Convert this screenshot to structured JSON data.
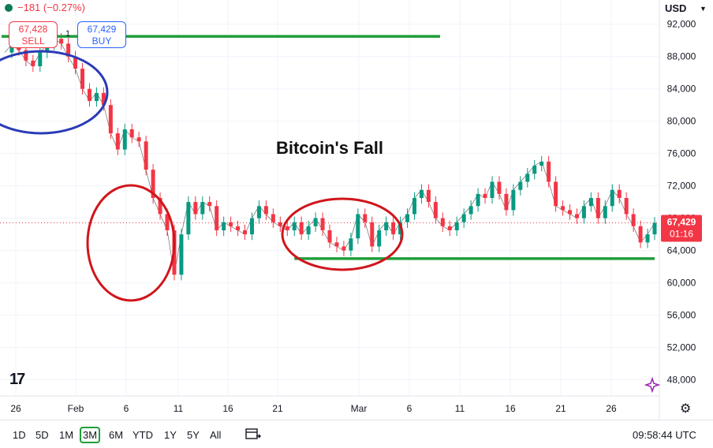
{
  "header": {
    "change_text": "−181 (−0.27%)",
    "sell_price": "67,428",
    "sell_label": "SELL",
    "spread": "1",
    "buy_price": "67,429",
    "buy_label": "BUY",
    "currency": "USD"
  },
  "toolbar": {
    "ranges": [
      "1D",
      "5D",
      "1M",
      "3M",
      "6M",
      "YTD",
      "1Y",
      "5Y",
      "All"
    ],
    "active_range": "3M",
    "clock": "09:58:44 UTC"
  },
  "colors": {
    "up": "#089981",
    "down": "#f23645",
    "support": "#1f9e3a",
    "circle_blue": "#2a3bb5",
    "circle_red": "#d0151b"
  },
  "chart_data": {
    "type": "line",
    "title": "Bitcoin's Fall",
    "y_tick_labels": [
      "92,000",
      "88,000",
      "84,000",
      "80,000",
      "76,000",
      "72,000",
      "68,000",
      "64,000",
      "60,000",
      "56,000",
      "52,000",
      "48,000"
    ],
    "x_tick_labels": [
      "26",
      "Feb",
      "6",
      "11",
      "16",
      "21",
      "Mar",
      "6",
      "11",
      "16",
      "21",
      "26"
    ],
    "ylim": [
      46000,
      95000
    ],
    "last_price": "67,429",
    "countdown": "01:16",
    "support_lines": [
      {
        "start": 12,
        "end": 57,
        "value": 90500
      },
      {
        "start": 41,
        "end": 78,
        "value": 63000
      }
    ],
    "series": [
      {
        "values": [
          88500,
          89500,
          88800,
          87500,
          86800,
          88500,
          89500,
          90200,
          89600,
          88000,
          86500,
          84000,
          82500,
          83500,
          82000,
          78500,
          76500,
          79000,
          78000,
          77500,
          74000,
          70500,
          68500,
          66500,
          61000,
          66000,
          70000,
          68500,
          70000,
          69500,
          66500,
          67500,
          67000,
          66500,
          66000,
          68000,
          69500,
          68500,
          67500,
          67000,
          66500,
          67500,
          66000,
          67000,
          68000,
          66500,
          65000,
          64500,
          64000,
          65500,
          68500,
          67500,
          64500,
          66500,
          67500,
          66000,
          67500,
          68500,
          70500,
          71500,
          70000,
          68000,
          67000,
          66500,
          67500,
          68500,
          69500,
          71000,
          70500,
          72500,
          71000,
          69000,
          71500,
          72500,
          73500,
          74500,
          75000,
          72500,
          69500,
          69000,
          68500,
          68000,
          69500,
          70500,
          68000,
          69500,
          71500,
          70500,
          68500,
          67000,
          65000,
          66000,
          67429
        ]
      }
    ]
  }
}
